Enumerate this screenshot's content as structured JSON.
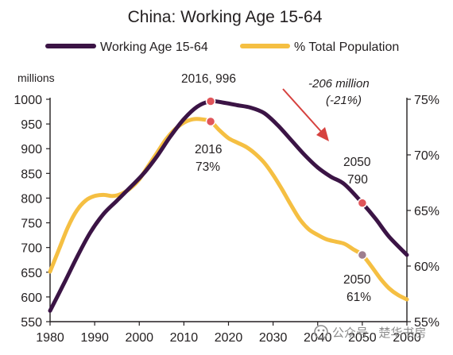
{
  "chart_data": {
    "type": "line",
    "title": "China: Working Age 15-64",
    "legend": {
      "placement": "top"
    },
    "left_axis": {
      "label": "millions",
      "ticks": [
        1000,
        950,
        900,
        850,
        800,
        750,
        700,
        650,
        600,
        550
      ],
      "min": 550,
      "max": 1000
    },
    "right_axis": {
      "ticks": [
        "75%",
        "70%",
        "65%",
        "60%",
        "55%"
      ],
      "tick_values": [
        75,
        70,
        65,
        60,
        55
      ],
      "min": 55,
      "max": 75
    },
    "x_axis": {
      "ticks": [
        "1980",
        "1990",
        "2000",
        "2010",
        "2020",
        "2030",
        "2040",
        "2050",
        "2060"
      ],
      "min": 1980,
      "max": 2060
    },
    "grid": false,
    "series": [
      {
        "name": "Working Age 15-64",
        "axis": "left",
        "color": "#3b1445",
        "x": [
          1980,
          1983,
          1986,
          1989,
          1992,
          1995,
          1998,
          2001,
          2004,
          2007,
          2010,
          2013,
          2016,
          2019,
          2022,
          2025,
          2028,
          2031,
          2034,
          2037,
          2040,
          2043,
          2046,
          2050,
          2053,
          2056,
          2060
        ],
        "values": [
          572,
          625,
          680,
          730,
          768,
          795,
          822,
          850,
          885,
          925,
          960,
          985,
          996,
          993,
          988,
          983,
          972,
          948,
          918,
          888,
          862,
          843,
          828,
          790,
          758,
          722,
          685
        ]
      },
      {
        "name": "% Total Population",
        "axis": "right",
        "color": "#f5bf42",
        "x": [
          1980,
          1982,
          1984,
          1986,
          1988,
          1990,
          1992,
          1994,
          1996,
          1998,
          2000,
          2002,
          2004,
          2006,
          2008,
          2010,
          2012,
          2014,
          2016,
          2018,
          2020,
          2022,
          2024,
          2026,
          2028,
          2030,
          2032,
          2034,
          2036,
          2038,
          2040,
          2042,
          2044,
          2046,
          2048,
          2050,
          2052,
          2054,
          2056,
          2058,
          2060
        ],
        "values": [
          59.5,
          61.5,
          63.5,
          65.0,
          65.9,
          66.3,
          66.4,
          66.3,
          66.5,
          67.0,
          67.8,
          69.0,
          70.2,
          71.4,
          72.3,
          72.9,
          73.2,
          73.2,
          73.0,
          72.2,
          71.5,
          71.1,
          70.7,
          70.1,
          69.3,
          68.2,
          66.9,
          65.5,
          64.2,
          63.3,
          62.8,
          62.4,
          62.2,
          62.0,
          61.5,
          61.0,
          60.0,
          58.9,
          58.0,
          57.4,
          57.0
        ]
      }
    ],
    "markers": [
      {
        "series": 0,
        "x": 2016,
        "y": 996,
        "color": "#e0555a",
        "label": "2016, 996"
      },
      {
        "series": 1,
        "x": 2016,
        "y": 73,
        "color": "#e0555a",
        "label": "2016\n73%"
      },
      {
        "series": 0,
        "x": 2050,
        "y": 790,
        "color": "#e0555a",
        "label": "2050\n790"
      },
      {
        "series": 1,
        "x": 2050,
        "y": 61,
        "color": "#9e7e8e",
        "label": "2050\n61%"
      }
    ],
    "annotations": [
      {
        "text": "-206 million",
        "style": "italic"
      },
      {
        "text": "(-21%)",
        "style": "italic"
      }
    ],
    "arrow_color": "#d6423f",
    "axis_color": "#231f20"
  },
  "watermark": {
    "icon": "wechat-official-account-icon",
    "text": "公众号 · 楚华书房"
  }
}
